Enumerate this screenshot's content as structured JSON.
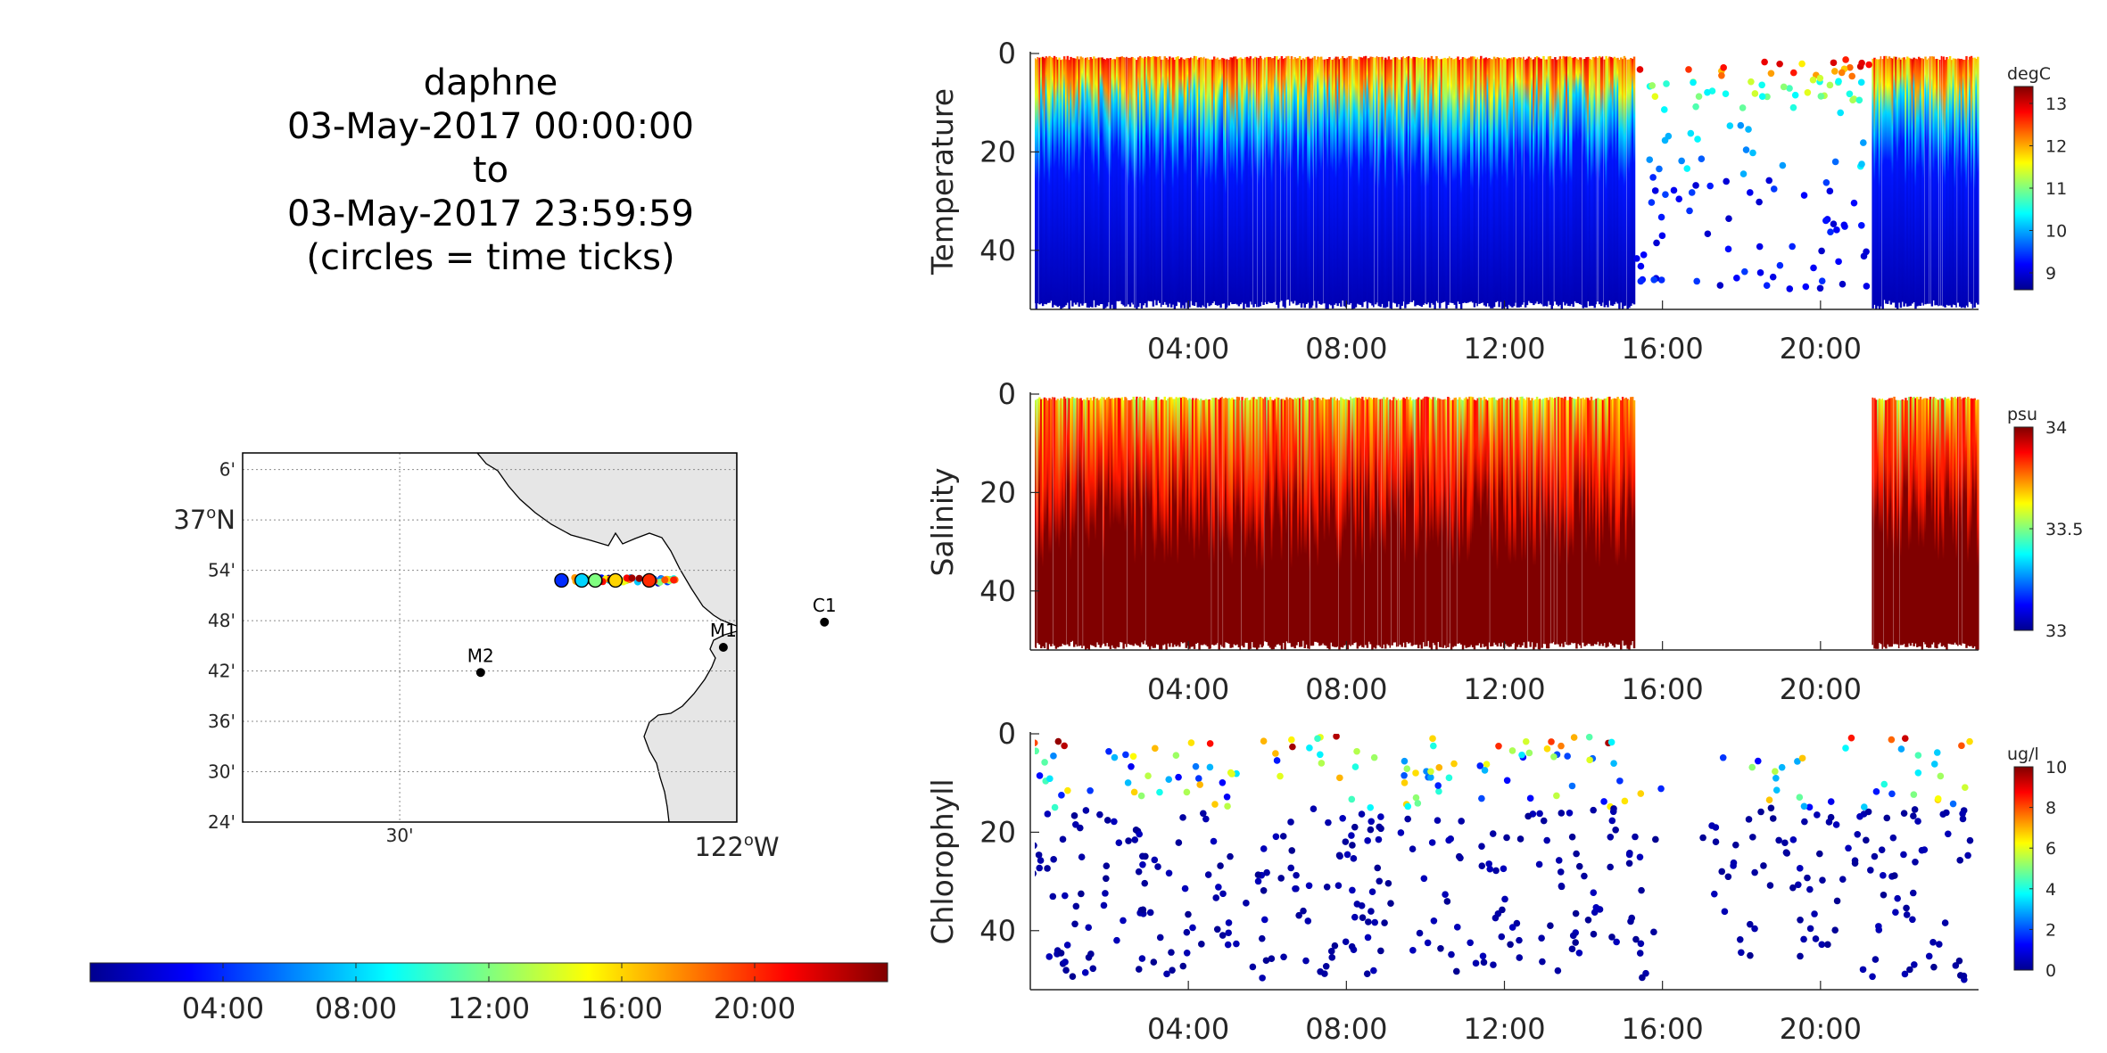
{
  "title": {
    "line1": "daphne",
    "line2": "03-May-2017 00:00:00",
    "line3": "to",
    "line4": "03-May-2017 23:59:59",
    "line5": "(circles = time ticks)"
  },
  "colormap": [
    "#00008f",
    "#0000ff",
    "#0080ff",
    "#00ffff",
    "#80ff80",
    "#ffff00",
    "#ff8000",
    "#ff0000",
    "#800000"
  ],
  "land_color": "#e6e6e6",
  "time_colorbar": {
    "range_hours": [
      0,
      24
    ],
    "ticks": [
      {
        "hour": 4,
        "label": "04:00"
      },
      {
        "hour": 8,
        "label": "08:00"
      },
      {
        "hour": 12,
        "label": "12:00"
      },
      {
        "hour": 16,
        "label": "16:00"
      },
      {
        "hour": 20,
        "label": "20:00"
      }
    ]
  },
  "chart_data": [
    {
      "type": "heatmap",
      "name": "temperature-panel",
      "ylabel": "Temperature",
      "y_reversed": true,
      "xlim_hours": [
        0,
        24
      ],
      "ylim": [
        0,
        52
      ],
      "xticks": [
        {
          "hour": 4,
          "label": "04:00"
        },
        {
          "hour": 8,
          "label": "08:00"
        },
        {
          "hour": 12,
          "label": "12:00"
        },
        {
          "hour": 16,
          "label": "16:00"
        },
        {
          "hour": 20,
          "label": "20:00"
        }
      ],
      "yticks": [
        {
          "value": 0,
          "label": "0"
        },
        {
          "value": 20,
          "label": "20"
        },
        {
          "value": 40,
          "label": "40"
        }
      ],
      "colorbar": {
        "unit": "degC",
        "range": [
          8.6,
          13.4
        ],
        "ticks": [
          {
            "value": 9,
            "label": "9"
          },
          {
            "value": 10,
            "label": "10"
          },
          {
            "value": 11,
            "label": "11"
          },
          {
            "value": 12,
            "label": "12"
          },
          {
            "value": 13,
            "label": "13"
          }
        ]
      },
      "dense_intervals_hours": [
        [
          0,
          15.3
        ],
        [
          21.3,
          24
        ]
      ],
      "sparse_interval_hours": [
        15.3,
        21.3
      ],
      "surface_value_range": [
        11,
        13
      ],
      "deep_value": 9,
      "thermocline_depth_range_m": [
        6,
        18
      ]
    },
    {
      "type": "heatmap",
      "name": "salinity-panel",
      "ylabel": "Salinity",
      "y_reversed": true,
      "xlim_hours": [
        0,
        24
      ],
      "ylim": [
        0,
        52
      ],
      "xticks": [
        {
          "hour": 4,
          "label": "04:00"
        },
        {
          "hour": 8,
          "label": "08:00"
        },
        {
          "hour": 12,
          "label": "12:00"
        },
        {
          "hour": 16,
          "label": "16:00"
        },
        {
          "hour": 20,
          "label": "20:00"
        }
      ],
      "yticks": [
        {
          "value": 0,
          "label": "0"
        },
        {
          "value": 20,
          "label": "20"
        },
        {
          "value": 40,
          "label": "40"
        }
      ],
      "colorbar": {
        "unit": "psu",
        "range": [
          33,
          34
        ],
        "ticks": [
          {
            "value": 33,
            "label": "33"
          },
          {
            "value": 33.5,
            "label": "33.5"
          },
          {
            "value": 34,
            "label": "34"
          }
        ]
      },
      "dense_intervals_hours": [
        [
          0,
          15.3
        ],
        [
          21.3,
          24
        ]
      ],
      "surface_value": 33.65,
      "deep_value": 34
    },
    {
      "type": "scatter",
      "name": "chlorophyll-panel",
      "ylabel": "Chlorophyll",
      "y_reversed": true,
      "xlim_hours": [
        0,
        24
      ],
      "ylim": [
        0,
        52
      ],
      "xticks": [
        {
          "hour": 4,
          "label": "04:00"
        },
        {
          "hour": 8,
          "label": "08:00"
        },
        {
          "hour": 12,
          "label": "12:00"
        },
        {
          "hour": 16,
          "label": "16:00"
        },
        {
          "hour": 20,
          "label": "20:00"
        }
      ],
      "yticks": [
        {
          "value": 0,
          "label": "0"
        },
        {
          "value": 20,
          "label": "20"
        },
        {
          "value": 40,
          "label": "40"
        }
      ],
      "colorbar": {
        "unit": "ug/l",
        "range": [
          0,
          10
        ],
        "ticks": [
          {
            "value": 0,
            "label": "0"
          },
          {
            "value": 2,
            "label": "2"
          },
          {
            "value": 4,
            "label": "4"
          },
          {
            "value": 6,
            "label": "6"
          },
          {
            "value": 8,
            "label": "8"
          },
          {
            "value": 10,
            "label": "10"
          }
        ]
      },
      "surface_value_range": [
        3,
        10
      ],
      "deep_value": 0.5,
      "gap_hours": [
        15.6,
        17.2
      ]
    }
  ],
  "map": {
    "lon_range": [
      -122.733,
      -122.0
    ],
    "lat_range": [
      36.4,
      37.133
    ],
    "lat_ticks": [
      {
        "lat": 37.1,
        "label": "6'"
      },
      {
        "lat": 36.9,
        "label": "54'"
      },
      {
        "lat": 36.8,
        "label": "48'"
      },
      {
        "lat": 36.7,
        "label": "42'"
      },
      {
        "lat": 36.6,
        "label": "36'"
      },
      {
        "lat": 36.5,
        "label": "30'"
      },
      {
        "lat": 36.4,
        "label": "24'"
      }
    ],
    "lat_major": {
      "lat": 37.0,
      "label": "37",
      "suffix": "N"
    },
    "lon_ticks": [
      {
        "lon": -122.5,
        "label": "30'"
      }
    ],
    "lon_major": {
      "lon": -122.0,
      "label": "122",
      "suffix": "W"
    },
    "stations": [
      {
        "name": "C1",
        "lon": -121.87,
        "lat": 36.797
      },
      {
        "name": "M1",
        "lon": -122.02,
        "lat": 36.747
      },
      {
        "name": "M2",
        "lon": -122.38,
        "lat": 36.697
      }
    ],
    "track": {
      "lon_start": -122.27,
      "lon_end": -122.09,
      "lat": 36.88
    },
    "time_tick_lons": [
      -122.26,
      -122.23,
      -122.21,
      -122.18,
      -122.13
    ]
  }
}
